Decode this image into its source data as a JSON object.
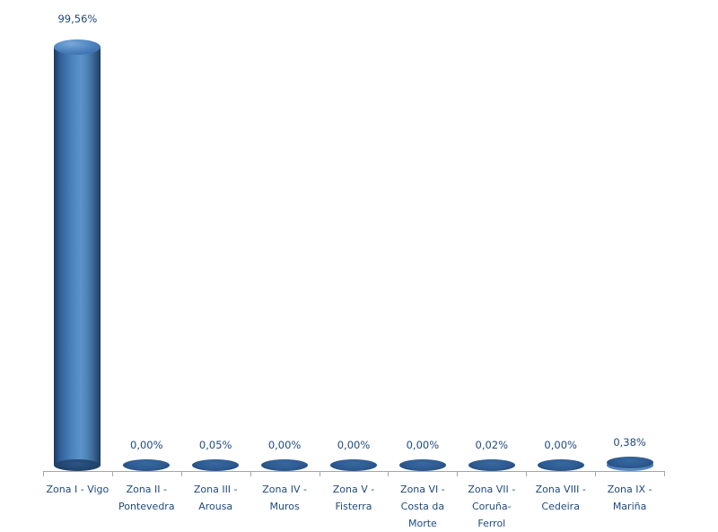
{
  "chart_data": {
    "type": "bar",
    "style": "3d-cylinder",
    "title": "",
    "xlabel": "",
    "ylabel": "",
    "unit": "%",
    "categories": [
      "Zona I - Vigo",
      "Zona II - Pontevedra",
      "Zona III - Arousa",
      "Zona IV - Muros",
      "Zona V - Fisterra",
      "Zona VI - Costa da Morte",
      "Zona VII - Coruña-Ferrol",
      "Zona VIII - Cedeira",
      "Zona IX - Mariña"
    ],
    "category_label_lines": [
      [
        "Zona I - Vigo"
      ],
      [
        "Zona II -",
        "Pontevedra"
      ],
      [
        "Zona III -",
        "Arousa"
      ],
      [
        "Zona IV -",
        "Muros"
      ],
      [
        "Zona V -",
        "Fisterra"
      ],
      [
        "Zona VI -",
        "Costa da",
        "Morte"
      ],
      [
        "Zona VII -",
        "Coruña-",
        "Ferrol"
      ],
      [
        "Zona VIII -",
        "Cedeira"
      ],
      [
        "Zona IX -",
        "Mariña"
      ]
    ],
    "values": [
      99.56,
      0.0,
      0.05,
      0.0,
      0.0,
      0.0,
      0.02,
      0.0,
      0.38
    ],
    "value_labels": [
      "99,56%",
      "0,00%",
      "0,05%",
      "0,00%",
      "0,00%",
      "0,00%",
      "0,02%",
      "0,00%",
      "0,38%"
    ],
    "ylim": [
      0,
      100
    ],
    "grid": false,
    "legend": false,
    "background": "#ffffff",
    "colors": {
      "bar_base": "#4a80ba",
      "bar_highlight": "#5d95cb",
      "bar_shadow_dark": "#1b3a5e",
      "flat_ellipse_fill": "#2d5a91",
      "label_text": "#1f497d",
      "axis_line": "#a6a6a6"
    }
  }
}
